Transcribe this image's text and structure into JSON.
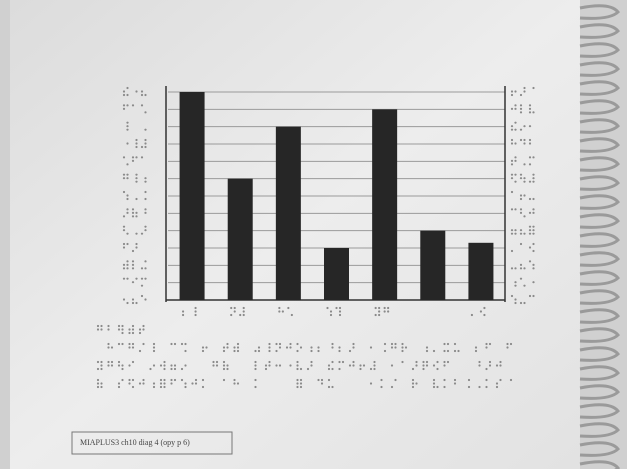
{
  "chart_data": {
    "type": "bar",
    "categories": [
      null,
      null,
      null,
      null,
      null,
      null,
      null
    ],
    "values": [
      12,
      7,
      10,
      3,
      11,
      4,
      3.3
    ],
    "color": "#262626",
    "ylim": [
      0,
      12
    ],
    "yticks": [
      0,
      1,
      2,
      3,
      4,
      5,
      6,
      7,
      8,
      9,
      10,
      11,
      12
    ],
    "grid": true,
    "annotation": "MIAPLUS3 ch10 diag 4 (opy p 6)"
  }
}
